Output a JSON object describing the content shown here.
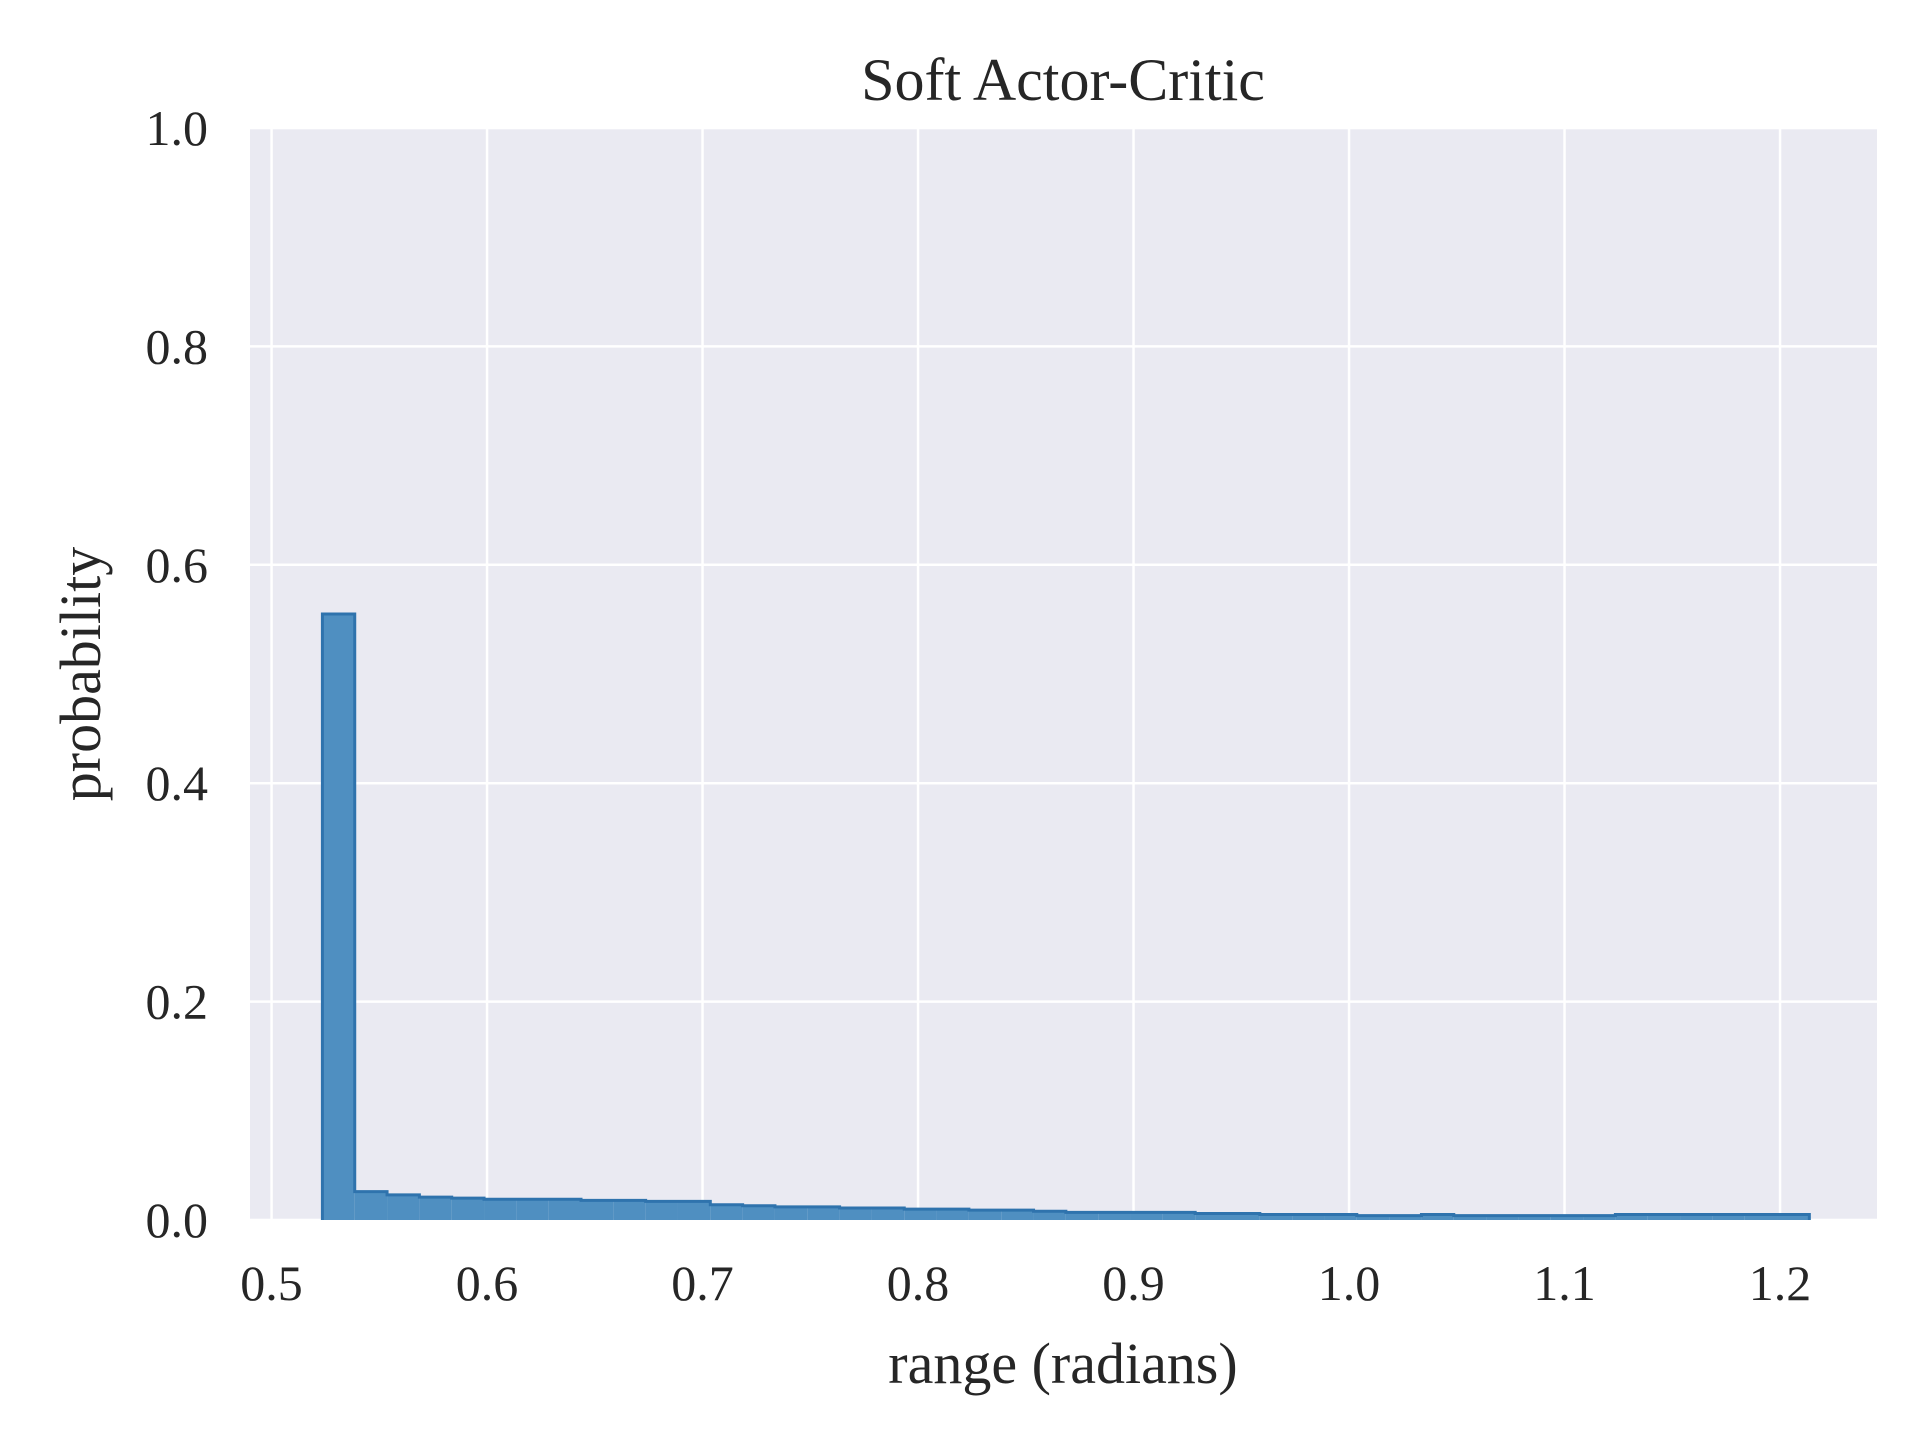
{
  "chart_data": {
    "type": "bar",
    "subtype": "histogram",
    "title": "Soft Actor-Critic",
    "xlabel": "range (radians)",
    "ylabel": "probability",
    "xlim": [
      0.49,
      1.245
    ],
    "ylim": [
      0.0,
      1.0
    ],
    "xticks": [
      0.5,
      0.6,
      0.7,
      0.8,
      0.9,
      1.0,
      1.1,
      1.2
    ],
    "xtick_labels": [
      "0.5",
      "0.6",
      "0.7",
      "0.8",
      "0.9",
      "1.0",
      "1.1",
      "1.2"
    ],
    "yticks": [
      0.0,
      0.2,
      0.4,
      0.6,
      0.8,
      1.0
    ],
    "ytick_labels": [
      "0.0",
      "0.2",
      "0.4",
      "0.6",
      "0.8",
      "1.0"
    ],
    "grid": true,
    "legend": "none",
    "bin_edges": [
      0.5236,
      0.5386,
      0.5536,
      0.5686,
      0.5836,
      0.5986,
      0.6136,
      0.6286,
      0.6436,
      0.6586,
      0.6736,
      0.6886,
      0.7036,
      0.7186,
      0.7336,
      0.7486,
      0.7636,
      0.7786,
      0.7936,
      0.8086,
      0.8236,
      0.8386,
      0.8536,
      0.8686,
      0.8836,
      0.8986,
      0.9136,
      0.9286,
      0.9436,
      0.9586,
      0.9736,
      0.9886,
      1.0036,
      1.0186,
      1.0336,
      1.0486,
      1.0636,
      1.0786,
      1.0936,
      1.1086,
      1.1236,
      1.1386,
      1.1536,
      1.1686,
      1.1836,
      1.1986,
      1.2136
    ],
    "values": [
      0.555,
      0.026,
      0.023,
      0.021,
      0.02,
      0.019,
      0.019,
      0.019,
      0.018,
      0.018,
      0.017,
      0.017,
      0.014,
      0.013,
      0.012,
      0.012,
      0.011,
      0.011,
      0.01,
      0.01,
      0.009,
      0.009,
      0.008,
      0.007,
      0.007,
      0.007,
      0.007,
      0.006,
      0.006,
      0.005,
      0.005,
      0.005,
      0.004,
      0.004,
      0.005,
      0.004,
      0.004,
      0.004,
      0.004,
      0.004,
      0.005,
      0.005,
      0.005,
      0.005,
      0.005,
      0.005
    ],
    "colors": {
      "bar_fill": "#4f8fc1",
      "bar_edge": "#2f73ad",
      "plot_background": "#eaeaf2",
      "grid": "#ffffff",
      "text": "#262626"
    }
  }
}
